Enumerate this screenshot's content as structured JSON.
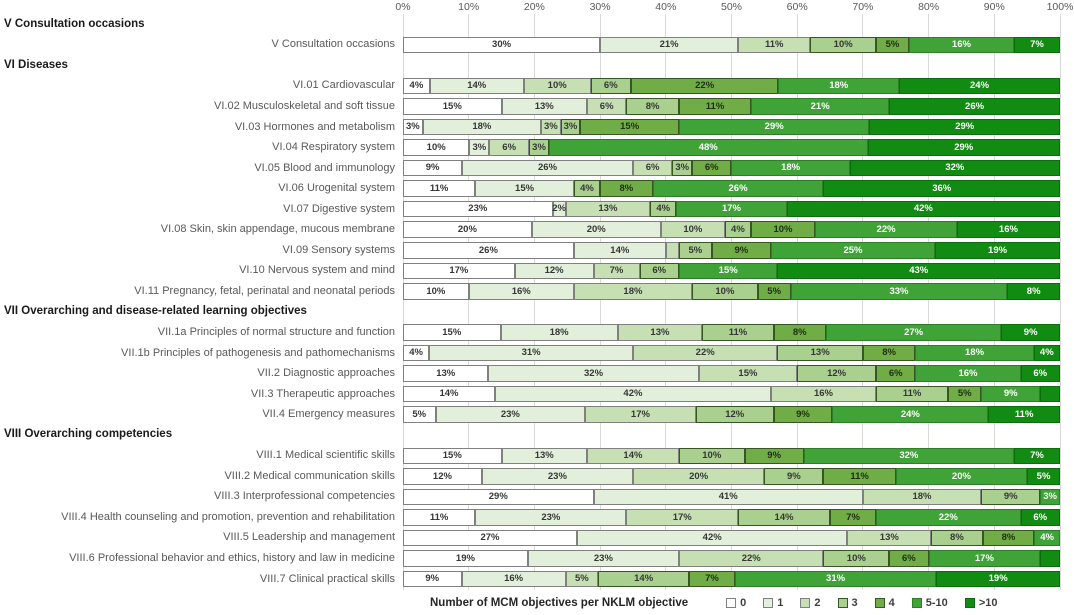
{
  "chart_data": {
    "type": "bar",
    "variant": "horizontal_stacked_100pct",
    "xlabel": "Number of MCM objectives per NKLM objective",
    "x_ticks": [
      "0%",
      "10%",
      "20%",
      "30%",
      "40%",
      "50%",
      "60%",
      "70%",
      "80%",
      "90%",
      "100%"
    ],
    "xlim": [
      0,
      100
    ],
    "grid": "vertical",
    "legend_position": "bottom-right",
    "categories": [
      {
        "label": "0",
        "color": "#FFFFFF",
        "border": "#808080",
        "text_color": "#363636"
      },
      {
        "label": "1",
        "color": "#E2EFDA",
        "border": "#808080",
        "text_color": "#363636"
      },
      {
        "label": "2",
        "color": "#C6E0B4",
        "border": "#808080",
        "text_color": "#363636"
      },
      {
        "label": "3",
        "color": "#A9D08E",
        "border": "#375623",
        "text_color": "#363636"
      },
      {
        "label": "4",
        "color": "#70AD47",
        "border": "#375623",
        "text_color": "#1f2d12"
      },
      {
        "label": "5-10",
        "color": "#3FA337",
        "border": "#2E7D27",
        "text_color": "#FFFFFF"
      },
      {
        "label": ">10",
        "color": "#118B11",
        "border": "#0B6E0D",
        "text_color": "#FFFFFF"
      }
    ],
    "sections": [
      {
        "header": "V Consultation occasions",
        "rows": [
          {
            "label": "V Consultation occasions",
            "values": [
              30,
              21,
              11,
              10,
              5,
              16,
              7
            ],
            "labels": [
              "30%",
              "21%",
              "11%",
              "10%",
              "5%",
              "16%",
              "7%"
            ]
          }
        ]
      },
      {
        "header": "VI Diseases",
        "rows": [
          {
            "label": "VI.01 Cardiovascular",
            "values": [
              4,
              14,
              10,
              6,
              22,
              18,
              24
            ],
            "labels": [
              "4%",
              "14%",
              "10%",
              "6%",
              "22%",
              "18%",
              "24%"
            ]
          },
          {
            "label": "VI.02 Musculoskeletal and soft tissue",
            "values": [
              15,
              13,
              6,
              8,
              11,
              21,
              26
            ],
            "labels": [
              "15%",
              "13%",
              "6%",
              "8%",
              "11%",
              "21%",
              "26%"
            ]
          },
          {
            "label": "VI.03 Hormones and metabolism",
            "values": [
              3,
              18,
              3,
              3,
              15,
              29,
              29
            ],
            "labels": [
              "3%",
              "18%",
              "3%",
              "3%",
              "15%",
              "29%",
              "29%"
            ]
          },
          {
            "label": "VI.04 Respiratory system",
            "values": [
              10,
              3,
              6,
              3,
              0,
              48,
              29
            ],
            "labels": [
              "10%",
              "3%",
              "6%",
              "3%",
              "",
              "48%",
              "29%"
            ]
          },
          {
            "label": "VI.05 Blood and immunology",
            "values": [
              9,
              26,
              6,
              3,
              6,
              18,
              32
            ],
            "labels": [
              "9%",
              "26%",
              "6%",
              "3%",
              "6%",
              "18%",
              "32%"
            ]
          },
          {
            "label": "VI.06 Urogenital system",
            "values": [
              11,
              15,
              0,
              4,
              8,
              26,
              36
            ],
            "labels": [
              "11%",
              "15%",
              "",
              "4%",
              "8%",
              "26%",
              "36%"
            ]
          },
          {
            "label": "VI.07 Digestive system",
            "values": [
              23,
              2,
              13,
              4,
              0,
              17,
              42
            ],
            "labels": [
              "23%",
              "2%",
              "13%",
              "4%",
              "",
              "17%",
              "42%"
            ]
          },
          {
            "label": "VI.08 Skin, skin appendage, mucous membrane",
            "values": [
              20,
              20,
              10,
              4,
              10,
              22,
              16
            ],
            "labels": [
              "20%",
              "20%",
              "10%",
              "4%",
              "10%",
              "22%",
              "16%"
            ]
          },
          {
            "label": "VI.09 Sensory systems",
            "values": [
              26,
              14,
              2,
              5,
              9,
              25,
              19
            ],
            "labels": [
              "26%",
              "14%",
              "",
              "5%",
              "9%",
              "25%",
              "19%"
            ]
          },
          {
            "label": "VI.10 Nervous system and mind",
            "values": [
              17,
              12,
              7,
              6,
              0,
              15,
              43
            ],
            "labels": [
              "17%",
              "12%",
              "7%",
              "6%",
              "",
              "15%",
              "43%"
            ]
          },
          {
            "label": "VI.11 Pregnancy, fetal, perinatal and neonatal periods",
            "values": [
              10,
              16,
              18,
              10,
              5,
              33,
              8
            ],
            "labels": [
              "10%",
              "16%",
              "18%",
              "10%",
              "5%",
              "33%",
              "8%"
            ]
          }
        ]
      },
      {
        "header": "VII Overarching and disease-related learning objectives",
        "rows": [
          {
            "label": "VII.1a Principles of normal structure and function",
            "values": [
              15,
              18,
              13,
              11,
              8,
              27,
              9
            ],
            "labels": [
              "15%",
              "18%",
              "13%",
              "11%",
              "8%",
              "27%",
              "9%"
            ]
          },
          {
            "label": "VII.1b Principles of pathogenesis and pathomechanisms",
            "values": [
              4,
              31,
              22,
              13,
              8,
              18,
              4
            ],
            "labels": [
              "4%",
              "31%",
              "22%",
              "13%",
              "8%",
              "18%",
              "4%"
            ]
          },
          {
            "label": "VII.2 Diagnostic approaches",
            "values": [
              13,
              32,
              15,
              12,
              6,
              16,
              6
            ],
            "labels": [
              "13%",
              "32%",
              "15%",
              "12%",
              "6%",
              "16%",
              "6%"
            ]
          },
          {
            "label": "VII.3 Therapeutic approaches",
            "values": [
              14,
              42,
              16,
              11,
              5,
              9,
              3
            ],
            "labels": [
              "14%",
              "42%",
              "16%",
              "11%",
              "5%",
              "9%",
              ""
            ]
          },
          {
            "label": "VII.4 Emergency measures",
            "values": [
              5,
              23,
              17,
              12,
              9,
              24,
              11
            ],
            "labels": [
              "5%",
              "23%",
              "17%",
              "12%",
              "9%",
              "24%",
              "11%"
            ]
          }
        ]
      },
      {
        "header": "VIII Overarching competencies",
        "rows": [
          {
            "label": "VIII.1  Medical scientific skills",
            "values": [
              15,
              13,
              14,
              10,
              9,
              32,
              7
            ],
            "labels": [
              "15%",
              "13%",
              "14%",
              "10%",
              "9%",
              "32%",
              "7%"
            ]
          },
          {
            "label": "VIII.2 Medical communication skills",
            "values": [
              12,
              23,
              20,
              9,
              11,
              20,
              5
            ],
            "labels": [
              "12%",
              "23%",
              "20%",
              "9%",
              "11%",
              "20%",
              "5%"
            ]
          },
          {
            "label": "VIII.3 Interprofessional competencies",
            "values": [
              29,
              41,
              18,
              9,
              0,
              3,
              0
            ],
            "labels": [
              "29%",
              "41%",
              "18%",
              "9%",
              "",
              "3%",
              ""
            ]
          },
          {
            "label": "VIII.4 Health counseling and promotion, prevention and rehabilitation",
            "values": [
              11,
              23,
              17,
              14,
              7,
              22,
              6
            ],
            "labels": [
              "11%",
              "23%",
              "17%",
              "14%",
              "7%",
              "22%",
              "6%"
            ]
          },
          {
            "label": "VIII.5 Leadership and management",
            "values": [
              27,
              42,
              13,
              8,
              8,
              4,
              0
            ],
            "labels": [
              "27%",
              "42%",
              "13%",
              "8%",
              "8%",
              "4%",
              ""
            ]
          },
          {
            "label": "VIII.6 Professional behavior and ethics, history and law in medicine",
            "values": [
              19,
              23,
              22,
              10,
              6,
              17,
              3
            ],
            "labels": [
              "19%",
              "23%",
              "22%",
              "10%",
              "6%",
              "17%",
              ""
            ]
          },
          {
            "label": "VIII.7 Clinical practical skills",
            "values": [
              9,
              16,
              5,
              14,
              7,
              31,
              19
            ],
            "labels": [
              "9%",
              "16%",
              "5%",
              "14%",
              "7%",
              "31%",
              "19%"
            ]
          }
        ]
      }
    ]
  }
}
